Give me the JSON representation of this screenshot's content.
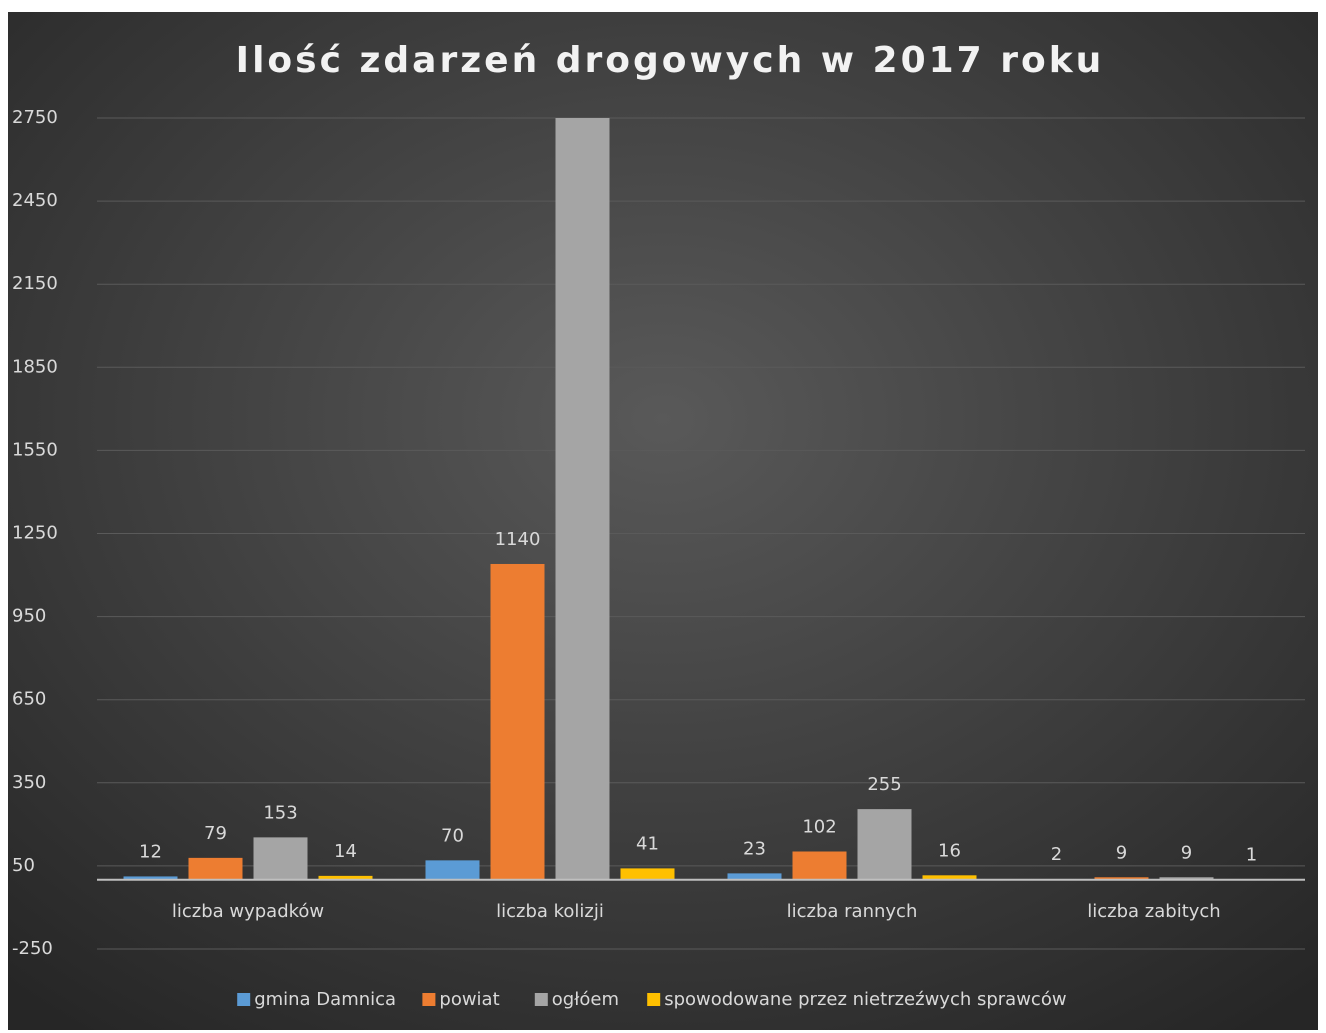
{
  "chart_data": {
    "type": "bar",
    "title": "Ilość zdarzeń drogowych w 2017 roku",
    "categories": [
      "liczba wypadków",
      "liczba kolizji",
      "liczba rannych",
      "liczba zabitych"
    ],
    "series": [
      {
        "name": "gmina Damnica",
        "color": "#5b9bd5",
        "values": [
          12,
          70,
          23,
          2
        ]
      },
      {
        "name": "powiat",
        "color": "#ed7d31",
        "values": [
          79,
          1140,
          102,
          9
        ]
      },
      {
        "name": "ogłóem",
        "color": "#a5a5a5",
        "values": [
          153,
          2750,
          255,
          9
        ]
      },
      {
        "name": "spowodowane przez nietrzeźwych sprawców",
        "color": "#ffc000",
        "values": [
          14,
          41,
          16,
          1
        ]
      }
    ],
    "ylim": [
      -250,
      2750
    ],
    "yticks": [
      -250,
      50,
      350,
      650,
      950,
      1250,
      1550,
      1850,
      2150,
      2450,
      2750
    ],
    "grid": true,
    "legend": "bottom"
  }
}
